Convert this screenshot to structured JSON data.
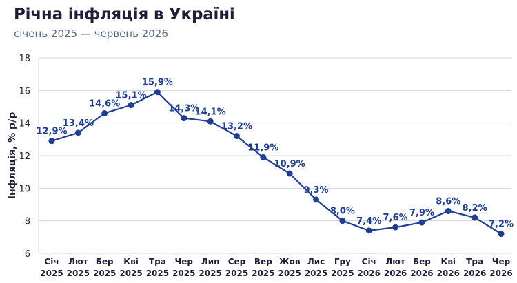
{
  "title": "Річна інфляція в Україні",
  "subtitle": "січень 2025 — червень 2026",
  "colors": {
    "line": "#1e3f95",
    "grid": "#d0d4dc",
    "text": "#1f1f3a"
  },
  "chart_data": {
    "type": "line",
    "title": "Річна інфляція в Україні",
    "subtitle": "січень 2025 — червень 2026",
    "xlabel": "",
    "ylabel": "Інфляція, % р/р",
    "ylim": [
      6,
      18
    ],
    "yticks": [
      6,
      8,
      10,
      12,
      14,
      16,
      18
    ],
    "grid": "horizontal",
    "legend": "none",
    "categories": [
      [
        "Січ",
        "2025"
      ],
      [
        "Лют",
        "2025"
      ],
      [
        "Бер",
        "2025"
      ],
      [
        "Кві",
        "2025"
      ],
      [
        "Тра",
        "2025"
      ],
      [
        "Чер",
        "2025"
      ],
      [
        "Лип",
        "2025"
      ],
      [
        "Сер",
        "2025"
      ],
      [
        "Вер",
        "2025"
      ],
      [
        "Жов",
        "2025"
      ],
      [
        "Лис",
        "2025"
      ],
      [
        "Гру",
        "2025"
      ],
      [
        "Січ",
        "2026"
      ],
      [
        "Лют",
        "2026"
      ],
      [
        "Бер",
        "2026"
      ],
      [
        "Кві",
        "2026"
      ],
      [
        "Тра",
        "2026"
      ],
      [
        "Чер",
        "2026"
      ]
    ],
    "series": [
      {
        "values": [
          12.9,
          13.4,
          14.6,
          15.1,
          15.9,
          14.3,
          14.1,
          13.2,
          11.9,
          10.9,
          9.3,
          8.0,
          7.4,
          7.6,
          7.9,
          8.6,
          8.2,
          7.2
        ],
        "labels": [
          "12,9%",
          "13,4%",
          "14,6%",
          "15,1%",
          "15,9%",
          "14,3%",
          "14,1%",
          "13,2%",
          "11,9%",
          "10,9%",
          "9,3%",
          "8,0%",
          "7,4%",
          "7,6%",
          "7,9%",
          "8,6%",
          "8,2%",
          "7,2%"
        ]
      }
    ]
  }
}
